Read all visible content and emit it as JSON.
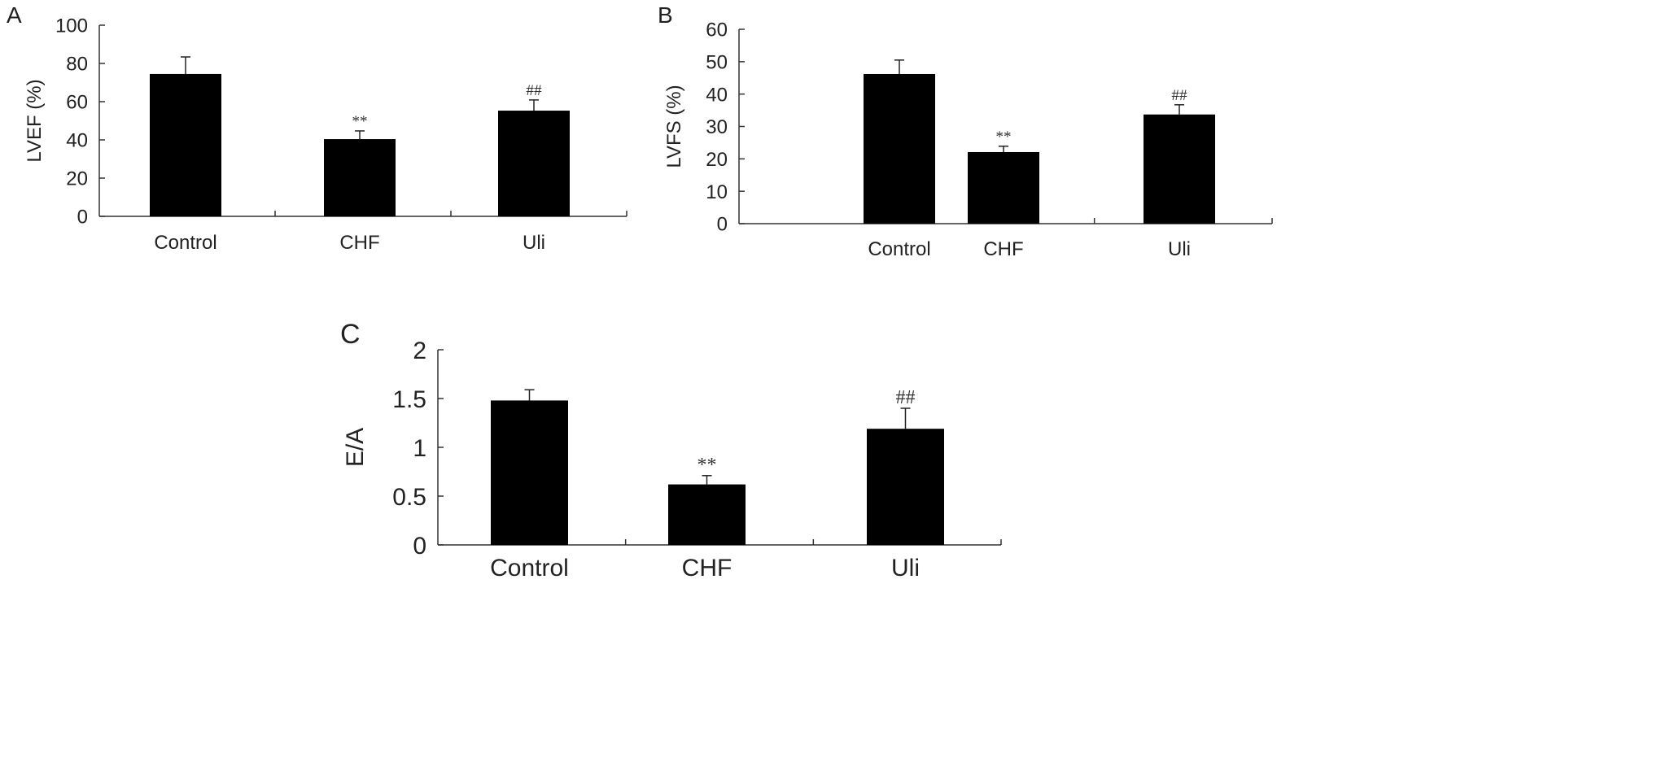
{
  "chart_data": [
    {
      "type": "bar",
      "panel_label": "A",
      "categories": [
        "Control",
        "CHF",
        "Uli"
      ],
      "values": [
        74.5,
        40.4,
        55.3
      ],
      "error_upper": [
        83.4,
        44.7,
        60.9
      ],
      "annotations": [
        "",
        "**",
        "##"
      ],
      "xlabel": "",
      "ylabel": "LVEF (%)",
      "ylim": [
        0,
        100
      ],
      "yticks": [
        0,
        20,
        40,
        60,
        80,
        100
      ],
      "grid": false
    },
    {
      "type": "bar",
      "panel_label": "B",
      "categories": [
        "Control",
        "CHF",
        "Uli"
      ],
      "values": [
        46.2,
        22.1,
        33.7
      ],
      "error_upper": [
        50.5,
        23.9,
        36.7
      ],
      "annotations": [
        "",
        "**",
        "##"
      ],
      "xlabel": "",
      "ylabel": "LVFS (%)",
      "ylim": [
        0,
        60
      ],
      "yticks": [
        0,
        10,
        20,
        30,
        40,
        50,
        60
      ],
      "grid": false
    },
    {
      "type": "bar",
      "panel_label": "C",
      "categories": [
        "Control",
        "CHF",
        "Uli"
      ],
      "values": [
        1.48,
        0.62,
        1.19
      ],
      "error_upper": [
        1.59,
        0.71,
        1.4
      ],
      "annotations": [
        "",
        "**",
        "##"
      ],
      "xlabel": "",
      "ylabel": "E/A",
      "ylim": [
        0,
        2
      ],
      "yticks": [
        "0",
        "0.5",
        "1",
        "1.5",
        "2"
      ],
      "grid": false
    }
  ],
  "colors": {
    "bar": "#000000",
    "axis": "#333333",
    "text": "#222222"
  }
}
